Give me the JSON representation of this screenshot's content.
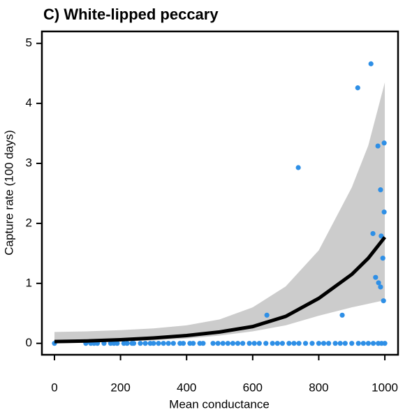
{
  "chart_data": {
    "type": "scatter",
    "title": "C) White-lipped peccary",
    "x_label": "Mean conductance",
    "y_label": "Capture rate (100 days)",
    "xlim": [
      -38,
      1040
    ],
    "ylim": [
      -0.19,
      5.2
    ],
    "xticks": [
      0,
      200,
      400,
      600,
      800,
      1000
    ],
    "yticks": [
      0,
      1,
      2,
      3,
      4,
      5
    ],
    "points": {
      "color": "#2e8fe6",
      "x": [
        643,
        738,
        871,
        918,
        958,
        964,
        972,
        979,
        981,
        987,
        987,
        989,
        994,
        996,
        998,
        998,
        0,
        95,
        110,
        120,
        130,
        150,
        170,
        180,
        190,
        210,
        220,
        235,
        240,
        260,
        275,
        290,
        300,
        315,
        330,
        345,
        360,
        380,
        390,
        410,
        420,
        440,
        450,
        480,
        495,
        510,
        525,
        540,
        555,
        570,
        590,
        605,
        620,
        640,
        660,
        675,
        690,
        710,
        725,
        740,
        760,
        780,
        800,
        815,
        830,
        850,
        865,
        880,
        900,
        920,
        935,
        950,
        965,
        980,
        990,
        1000
      ],
      "values": [
        0.47,
        2.93,
        0.47,
        4.26,
        4.66,
        1.83,
        1.1,
        3.29,
        1.01,
        0.94,
        2.56,
        1.79,
        1.42,
        0.71,
        2.19,
        3.34,
        0,
        0,
        0,
        0,
        0,
        0,
        0,
        0,
        0,
        0,
        0,
        0,
        0,
        0,
        0,
        0,
        0,
        0,
        0,
        0,
        0,
        0,
        0,
        0,
        0,
        0,
        0,
        0,
        0,
        0,
        0,
        0,
        0,
        0,
        0,
        0,
        0,
        0,
        0,
        0,
        0,
        0,
        0,
        0,
        0,
        0,
        0,
        0,
        0,
        0,
        0,
        0,
        0,
        0,
        0,
        0,
        0,
        0,
        0,
        0
      ]
    },
    "fit": {
      "color": "#000000",
      "band_color": "#cccccc",
      "x": [
        0,
        100,
        200,
        300,
        400,
        500,
        600,
        700,
        800,
        900,
        950,
        1000
      ],
      "values": [
        0.03,
        0.04,
        0.06,
        0.09,
        0.13,
        0.19,
        0.28,
        0.45,
        0.75,
        1.15,
        1.42,
        1.77
      ],
      "lower": [
        0,
        0.01,
        0.03,
        0.05,
        0.08,
        0.13,
        0.2,
        0.3,
        0.46,
        0.6,
        0.66,
        0.72
      ],
      "upper": [
        0.19,
        0.2,
        0.22,
        0.25,
        0.3,
        0.4,
        0.6,
        0.95,
        1.55,
        2.6,
        3.3,
        4.35
      ]
    }
  }
}
